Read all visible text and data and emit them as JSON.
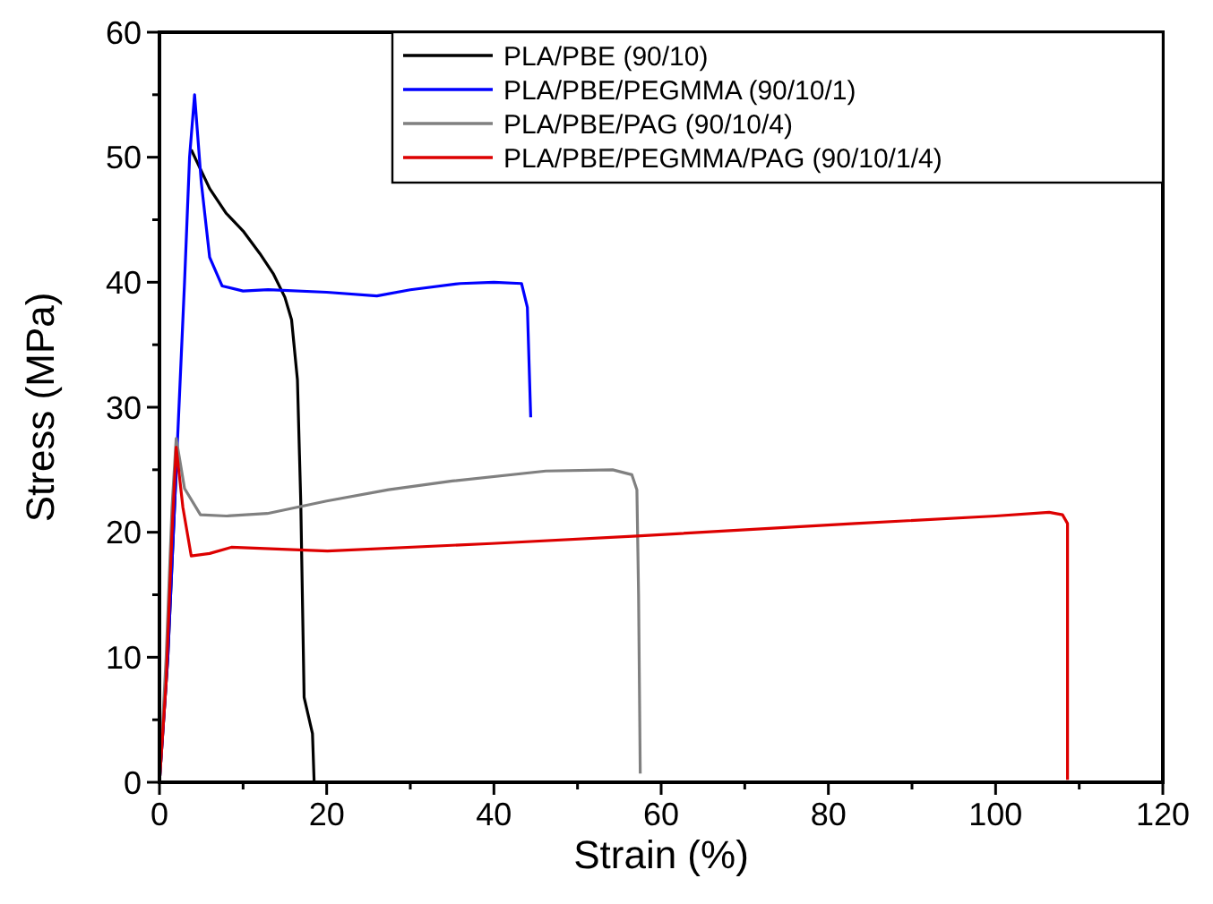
{
  "chart_data": {
    "type": "line",
    "xlabel": "Strain (%)",
    "ylabel": "Stress (MPa)",
    "xlim": [
      0,
      120
    ],
    "ylim": [
      0,
      60
    ],
    "xticks": [
      0,
      {
        "value": 10,
        "label": null
      },
      20,
      {
        "value": 30,
        "label": null
      },
      40,
      {
        "value": 50,
        "label": null
      },
      60,
      {
        "value": 70,
        "label": null
      },
      80,
      {
        "value": 90,
        "label": null
      },
      100,
      {
        "value": 110,
        "label": null
      },
      120
    ],
    "yticks": [
      0,
      {
        "value": 5,
        "label": null
      },
      10,
      {
        "value": 15,
        "label": null
      },
      20,
      {
        "value": 25,
        "label": null
      },
      30,
      {
        "value": 35,
        "label": null
      },
      40,
      {
        "value": 45,
        "label": null
      },
      50,
      {
        "value": 55,
        "label": null
      },
      60
    ],
    "legend": "top right",
    "grid": false,
    "line_style": "solid",
    "series": [
      {
        "name": "PLA/PBE (90/10)",
        "color": "#000000",
        "x": [
          0,
          1,
          2,
          3,
          3.8,
          6,
          8,
          10,
          12,
          13.6,
          15,
          15.8,
          16.5,
          16.9,
          17.3,
          18.3,
          18.5
        ],
        "values": [
          0,
          10,
          25,
          null,
          50.6,
          47.5,
          45.5,
          44.1,
          42.3,
          40.7,
          38.8,
          37,
          32.2,
          22.4,
          6.8,
          3.9,
          0
        ]
      },
      {
        "name": "PLA/PBE/PEGMMA (90/10/1)",
        "color": "#0000ff",
        "x": [
          0,
          1,
          2,
          3,
          3.6,
          4.2,
          5,
          6,
          7.5,
          10,
          13,
          20,
          26,
          30,
          36,
          40,
          43.3,
          44,
          44.4
        ],
        "values": [
          0,
          10,
          25,
          40,
          50,
          55,
          48,
          42,
          39.7,
          39.3,
          39.4,
          39.2,
          38.9,
          39.4,
          39.9,
          40,
          39.9,
          38,
          29.2
        ]
      },
      {
        "name": "PLA/PBE/PAG (90/10/4)",
        "color": "#808080",
        "x": [
          0,
          0.8,
          1.5,
          2,
          3,
          4.9,
          8,
          12.9,
          20,
          27.4,
          35,
          46.2,
          54.2,
          56.5,
          57.1,
          57.3,
          57.5
        ],
        "values": [
          0,
          10,
          22,
          27.5,
          23.5,
          21.4,
          21.3,
          21.5,
          22.5,
          23.4,
          24.1,
          24.9,
          25,
          24.6,
          23.4,
          15,
          0.7
        ]
      },
      {
        "name": "PLA/PBE/PEGMMA/PAG (90/10/1/4)",
        "color": "#dd0000",
        "x": [
          0,
          0.8,
          1.5,
          2,
          2.8,
          3.8,
          6,
          8.6,
          20.1,
          39.7,
          57.1,
          83.2,
          100,
          106.4,
          108,
          108.6,
          108.6
        ],
        "values": [
          0,
          8,
          20,
          26.8,
          22,
          18.1,
          18.3,
          18.8,
          18.5,
          19.1,
          19.7,
          20.7,
          21.3,
          21.6,
          21.4,
          20.7,
          0.2
        ]
      }
    ]
  }
}
